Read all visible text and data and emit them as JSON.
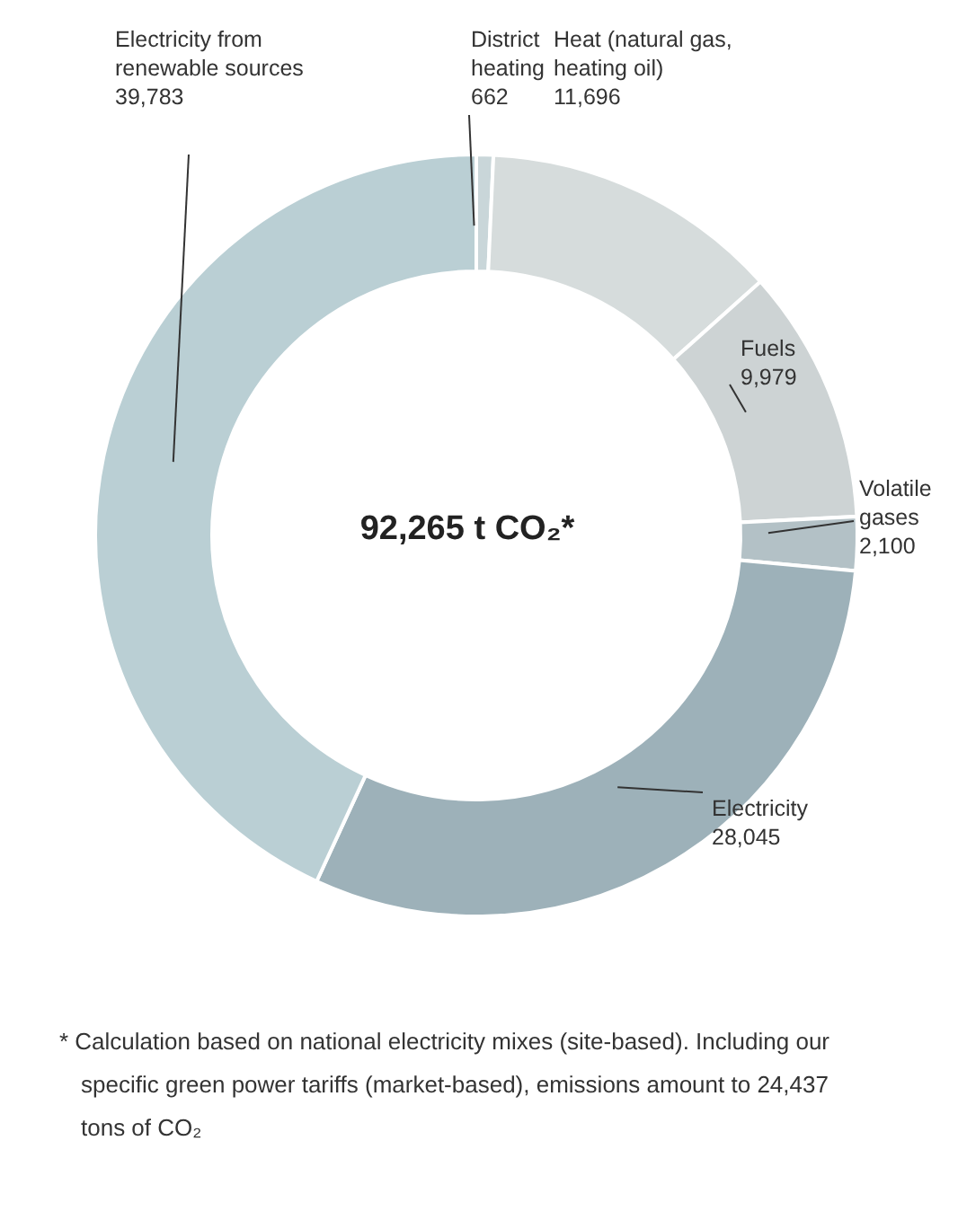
{
  "chart_data": {
    "type": "donut",
    "title": "92,265 t CO₂*",
    "categories": [
      "District heating",
      "Heat (natural gas, heating oil)",
      "Fuels",
      "Volatile gases",
      "Electricity",
      "Electricity from renewable sources"
    ],
    "values": [
      662,
      11696,
      9979,
      2100,
      28045,
      39783
    ],
    "colors": [
      "#c9d6d9",
      "#d6dcdc",
      "#cdd3d4",
      "#b3c1c6",
      "#9db1b9",
      "#bacfd4"
    ],
    "value_labels": [
      "662",
      "11,696",
      "9,979",
      "2,100",
      "28,045",
      "39,783"
    ],
    "annotations": [
      "* Calculation based on national electricity mixes (site-based). Including our specific green power tariffs (market-based), emissions amount to 24,437 tons of CO₂"
    ]
  }
}
